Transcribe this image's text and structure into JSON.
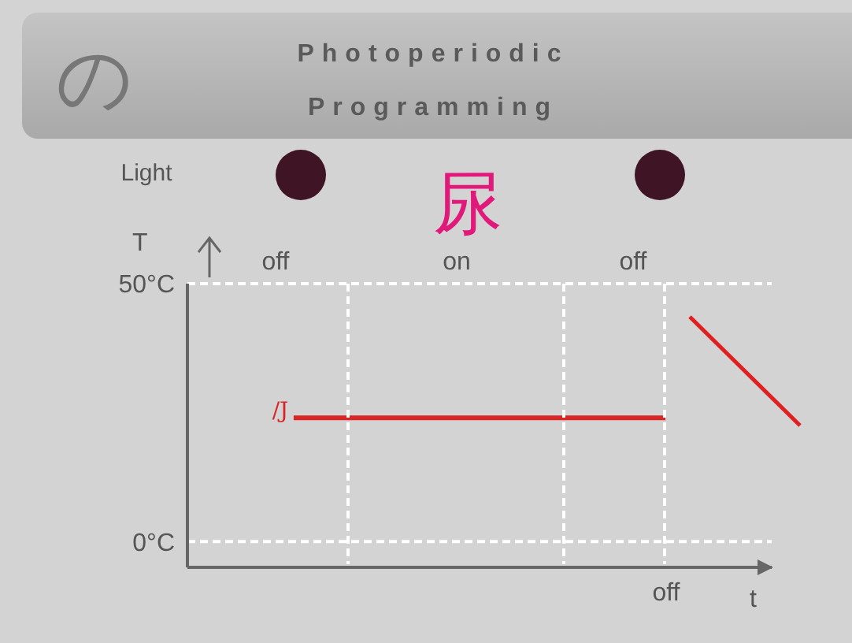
{
  "chart_data": {
    "type": "line",
    "title": "Photoperiodic Programming",
    "xlabel": "t",
    "ylabel": "T",
    "categories": [
      null,
      null,
      null,
      null,
      null,
      null,
      null,
      null,
      null,
      null,
      null,
      null
    ],
    "series": [
      {
        "color": "#d92525",
        "values": [
          null,
          null,
          24,
          24,
          24,
          24,
          24,
          24,
          24,
          24,
          null,
          null
        ]
      }
    ],
    "ylim": [
      -5,
      50
    ],
    "yticks": [
      {
        "value": 0,
        "label": "0°C"
      },
      {
        "value": 50,
        "label": "50°C"
      }
    ],
    "grid": "y",
    "tick_labels": "y",
    "annotations": [
      "の",
      "Light",
      "尿",
      "/J",
      "off",
      "on",
      "off",
      "off"
    ]
  }
}
